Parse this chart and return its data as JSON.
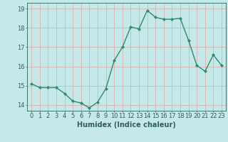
{
  "x": [
    0,
    1,
    2,
    3,
    4,
    5,
    6,
    7,
    8,
    9,
    10,
    11,
    12,
    13,
    14,
    15,
    16,
    17,
    18,
    19,
    20,
    21,
    22,
    23
  ],
  "y": [
    15.1,
    14.9,
    14.9,
    14.9,
    14.6,
    14.2,
    14.1,
    13.85,
    14.15,
    14.85,
    16.3,
    17.0,
    18.05,
    17.95,
    18.9,
    18.55,
    18.45,
    18.45,
    18.5,
    17.35,
    16.05,
    15.75,
    16.6,
    16.05
  ],
  "line_color": "#2e8b6e",
  "marker": "D",
  "marker_size": 2.2,
  "bg_color": "#c5e8e8",
  "grid_color": "#d4b8b8",
  "xlabel": "Humidex (Indice chaleur)",
  "xlim": [
    -0.5,
    23.5
  ],
  "ylim": [
    13.7,
    19.3
  ],
  "yticks": [
    14,
    15,
    16,
    17,
    18,
    19
  ],
  "xticks": [
    0,
    1,
    2,
    3,
    4,
    5,
    6,
    7,
    8,
    9,
    10,
    11,
    12,
    13,
    14,
    15,
    16,
    17,
    18,
    19,
    20,
    21,
    22,
    23
  ],
  "xtick_labels": [
    "0",
    "1",
    "2",
    "3",
    "4",
    "5",
    "6",
    "7",
    "8",
    "9",
    "10",
    "11",
    "12",
    "13",
    "14",
    "15",
    "16",
    "17",
    "18",
    "19",
    "20",
    "21",
    "22",
    "23"
  ],
  "tick_color": "#2e6060",
  "label_fontsize": 7.0,
  "tick_fontsize": 6.0,
  "line_width": 1.0
}
